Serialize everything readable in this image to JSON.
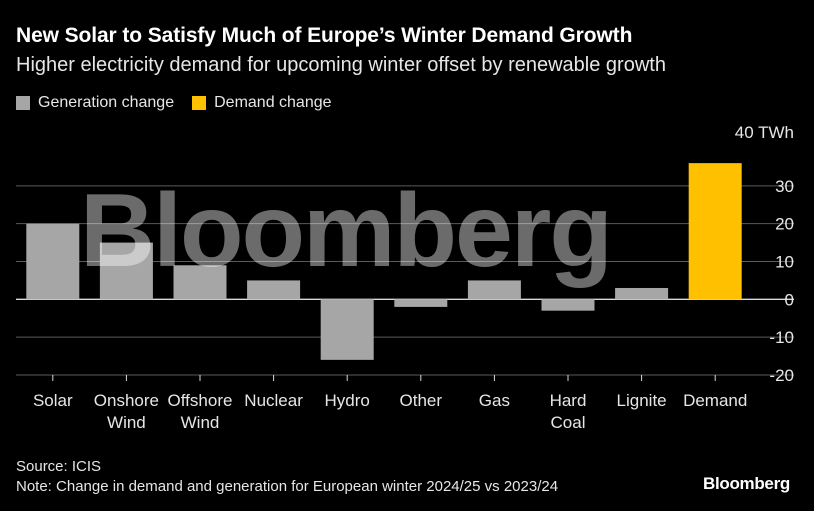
{
  "header": {
    "title": "New Solar to Satisfy Much of Europe’s Winter Demand Growth",
    "subtitle": "Higher electricity demand for upcoming winter offset by renewable growth"
  },
  "legend": [
    {
      "label": "Generation change",
      "color": "#a6a6a6"
    },
    {
      "label": "Demand change",
      "color": "#ffc000"
    }
  ],
  "footer": {
    "source": "Source: ICIS",
    "note": "Note: Change in demand and generation for European winter 2024/25 vs 2023/24",
    "brand": "Bloomberg"
  },
  "watermark": "Bloomberg",
  "chart_data": {
    "type": "bar",
    "categories": [
      "Solar",
      "Onshore Wind",
      "Offshore Wind",
      "Nuclear",
      "Hydro",
      "Other",
      "Gas",
      "Hard Coal",
      "Lignite",
      "Demand"
    ],
    "category_lines": [
      [
        "Solar"
      ],
      [
        "Onshore",
        "Wind"
      ],
      [
        "Offshore",
        "Wind"
      ],
      [
        "Nuclear"
      ],
      [
        "Hydro"
      ],
      [
        "Other"
      ],
      [
        "Gas"
      ],
      [
        "Hard",
        "Coal"
      ],
      [
        "Lignite"
      ],
      [
        "Demand"
      ]
    ],
    "values": [
      20,
      15,
      9,
      5,
      -16,
      -2,
      5,
      -3,
      3,
      36
    ],
    "bar_colors": [
      "#a6a6a6",
      "#a6a6a6",
      "#a6a6a6",
      "#a6a6a6",
      "#a6a6a6",
      "#a6a6a6",
      "#a6a6a6",
      "#a6a6a6",
      "#a6a6a6",
      "#ffc000"
    ],
    "ylim": [
      -20,
      40
    ],
    "yticks": [
      -20,
      -10,
      0,
      10,
      20,
      30,
      40
    ],
    "ytick_labels": [
      "-20",
      "-10",
      "0",
      "10",
      "20",
      "30",
      "40 TWh"
    ],
    "grid": true,
    "y_axis_side": "right",
    "legend_position": "top-left"
  }
}
